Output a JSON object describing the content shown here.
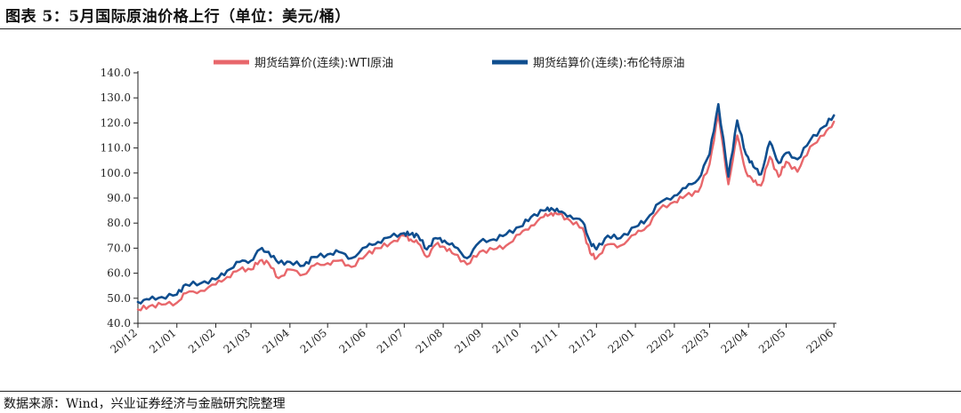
{
  "figure": {
    "title": "图表 5：5月国际原油价格上行（单位：美元/桶）",
    "source": "数据来源：Wind，兴业证券经济与金融研究院整理"
  },
  "chart_data": {
    "type": "line",
    "title": "",
    "xlabel": "",
    "ylabel": "",
    "ylim": [
      40,
      140
    ],
    "yticks": [
      40,
      50,
      60,
      70,
      80,
      90,
      100,
      110,
      120,
      130,
      140
    ],
    "ytick_labels": [
      "40.0",
      "50.0",
      "60.0",
      "70.0",
      "80.0",
      "90.0",
      "100.0",
      "110.0",
      "120.0",
      "130.0",
      "140.0"
    ],
    "xlim": [
      "2020-12-01",
      "2022-06-10"
    ],
    "x_ticks": [
      "20/12",
      "21/01",
      "21/02",
      "21/03",
      "21/04",
      "21/05",
      "21/06",
      "21/07",
      "21/08",
      "21/09",
      "21/10",
      "21/11",
      "21/12",
      "22/01",
      "22/02",
      "22/03",
      "22/04",
      "22/05",
      "22/06"
    ],
    "legend_position": "top",
    "grid": false,
    "series": [
      {
        "name": "期货结算价(连续):WTI原油",
        "color": "#E8676B",
        "x": [
          "2020-12-01",
          "2020-12-10",
          "2020-12-20",
          "2021-01-01",
          "2021-01-08",
          "2021-01-20",
          "2021-02-01",
          "2021-02-10",
          "2021-02-20",
          "2021-03-01",
          "2021-03-08",
          "2021-03-15",
          "2021-03-23",
          "2021-04-01",
          "2021-04-12",
          "2021-04-20",
          "2021-05-01",
          "2021-05-10",
          "2021-05-20",
          "2021-06-01",
          "2021-06-10",
          "2021-06-20",
          "2021-07-01",
          "2021-07-06",
          "2021-07-12",
          "2021-07-19",
          "2021-07-26",
          "2021-08-02",
          "2021-08-10",
          "2021-08-20",
          "2021-08-30",
          "2021-09-10",
          "2021-09-20",
          "2021-10-01",
          "2021-10-10",
          "2021-10-20",
          "2021-10-26",
          "2021-11-01",
          "2021-11-10",
          "2021-11-20",
          "2021-11-26",
          "2021-12-01",
          "2021-12-10",
          "2021-12-20",
          "2022-01-01",
          "2022-01-10",
          "2022-01-20",
          "2022-02-01",
          "2022-02-10",
          "2022-02-20",
          "2022-03-01",
          "2022-03-08",
          "2022-03-16",
          "2022-03-23",
          "2022-03-30",
          "2022-04-05",
          "2022-04-11",
          "2022-04-18",
          "2022-04-25",
          "2022-05-01",
          "2022-05-10",
          "2022-05-20",
          "2022-05-31",
          "2022-06-08"
        ],
        "values": [
          45.5,
          46.8,
          47.5,
          48.2,
          52.0,
          53.0,
          55.5,
          58.5,
          61.5,
          61.5,
          65.0,
          64.0,
          58.0,
          61.5,
          59.5,
          63.0,
          64.0,
          65.0,
          62.5,
          67.5,
          70.0,
          72.0,
          75.0,
          73.5,
          72.0,
          66.5,
          71.5,
          70.5,
          67.5,
          63.5,
          68.5,
          69.5,
          71.0,
          75.5,
          79.0,
          82.5,
          84.0,
          83.5,
          81.0,
          78.0,
          68.0,
          66.0,
          71.5,
          71.0,
          75.5,
          78.5,
          85.5,
          88.5,
          91.0,
          92.5,
          103.5,
          123.5,
          95.5,
          115.0,
          100.5,
          96.5,
          95.0,
          106.5,
          98.5,
          104.5,
          100.5,
          110.5,
          115.0,
          120.5
        ]
      },
      {
        "name": "期货结算价(连续):布伦特原油",
        "color": "#0F4E8F",
        "x": [
          "2020-12-01",
          "2020-12-10",
          "2020-12-20",
          "2021-01-01",
          "2021-01-08",
          "2021-01-20",
          "2021-02-01",
          "2021-02-10",
          "2021-02-20",
          "2021-03-01",
          "2021-03-08",
          "2021-03-15",
          "2021-03-23",
          "2021-04-01",
          "2021-04-12",
          "2021-04-20",
          "2021-05-01",
          "2021-05-10",
          "2021-05-20",
          "2021-06-01",
          "2021-06-10",
          "2021-06-20",
          "2021-07-01",
          "2021-07-06",
          "2021-07-12",
          "2021-07-19",
          "2021-07-26",
          "2021-08-02",
          "2021-08-10",
          "2021-08-20",
          "2021-08-30",
          "2021-09-10",
          "2021-09-20",
          "2021-10-01",
          "2021-10-10",
          "2021-10-20",
          "2021-10-26",
          "2021-11-01",
          "2021-11-10",
          "2021-11-20",
          "2021-11-26",
          "2021-12-01",
          "2021-12-10",
          "2021-12-20",
          "2022-01-01",
          "2022-01-10",
          "2022-01-20",
          "2022-02-01",
          "2022-02-10",
          "2022-02-20",
          "2022-03-01",
          "2022-03-08",
          "2022-03-16",
          "2022-03-23",
          "2022-03-30",
          "2022-04-05",
          "2022-04-11",
          "2022-04-18",
          "2022-04-25",
          "2022-05-01",
          "2022-05-10",
          "2022-05-20",
          "2022-05-31",
          "2022-06-08"
        ],
        "values": [
          48.5,
          49.5,
          50.5,
          51.5,
          55.5,
          56.0,
          57.5,
          61.0,
          64.5,
          65.0,
          69.5,
          68.5,
          64.0,
          64.5,
          63.0,
          66.5,
          67.5,
          68.5,
          66.0,
          70.5,
          72.5,
          74.5,
          76.0,
          75.5,
          75.0,
          69.5,
          74.0,
          73.0,
          70.5,
          66.0,
          72.5,
          73.5,
          75.5,
          78.5,
          82.5,
          85.0,
          86.0,
          84.5,
          83.0,
          80.5,
          72.5,
          69.5,
          75.0,
          74.0,
          78.5,
          81.5,
          88.0,
          91.0,
          94.0,
          97.5,
          107.5,
          127.5,
          98.5,
          121.0,
          107.5,
          102.5,
          99.5,
          112.5,
          104.0,
          108.0,
          105.5,
          113.0,
          118.5,
          123.0
        ]
      }
    ]
  }
}
